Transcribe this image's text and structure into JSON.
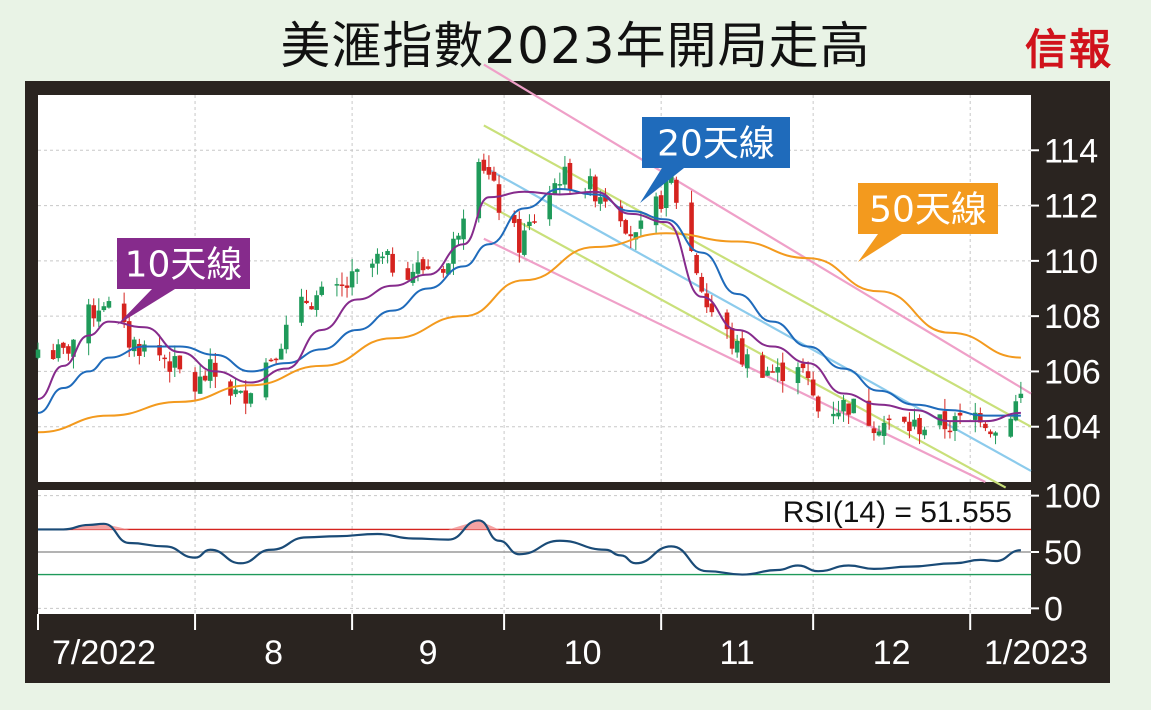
{
  "title": "美滙指數2023年開局走高",
  "brand": "信報",
  "colors": {
    "background": "#e9f3e6",
    "panel": "#2a2420",
    "plot": "#ffffff",
    "up": "#1f9a5a",
    "down": "#d5231f",
    "ma10": "#862b8c",
    "ma20": "#1f6bbb",
    "ma50": "#f39a1e",
    "channel_outer": "#efa0c8",
    "channel_inner": "#c9e07a",
    "channel_mid": "#8ccbec",
    "rsi_line": "#1a4b77",
    "rsi_overbought": "#d5231f",
    "rsi_oversold": "#1f9a5a"
  },
  "chart_data": [
    {
      "type": "candlestick",
      "title": "美滙指數2023年開局走高",
      "x_range": [
        "2022-07-01",
        "2023-01-13"
      ],
      "x_tick_labels": [
        "7/2022",
        "8",
        "9",
        "10",
        "11",
        "12",
        "1/2023"
      ],
      "y_ticks": [
        104,
        106,
        108,
        110,
        112,
        114
      ],
      "ylim": [
        102.0,
        116.0
      ],
      "grid": true,
      "callouts": [
        {
          "label": "10天線",
          "color": "#862b8c"
        },
        {
          "label": "20天線",
          "color": "#1f6bbb"
        },
        {
          "label": "50天線",
          "color": "#f39a1e"
        }
      ],
      "ma10": [
        [
          "2022-07-01",
          105.0
        ],
        [
          "2022-07-06",
          106.2
        ],
        [
          "2022-07-11",
          107.3
        ],
        [
          "2022-07-15",
          107.8
        ],
        [
          "2022-07-22",
          107.6
        ],
        [
          "2022-07-29",
          106.7
        ],
        [
          "2022-08-05",
          106.0
        ],
        [
          "2022-08-12",
          105.6
        ],
        [
          "2022-08-19",
          106.1
        ],
        [
          "2022-08-26",
          107.5
        ],
        [
          "2022-09-02",
          108.6
        ],
        [
          "2022-09-09",
          109.1
        ],
        [
          "2022-09-16",
          109.5
        ],
        [
          "2022-09-23",
          110.6
        ],
        [
          "2022-09-28",
          112.3
        ],
        [
          "2022-10-05",
          112.5
        ],
        [
          "2022-10-12",
          112.4
        ],
        [
          "2022-10-19",
          112.5
        ],
        [
          "2022-10-26",
          111.7
        ],
        [
          "2022-11-02",
          111.4
        ],
        [
          "2022-11-09",
          108.7
        ],
        [
          "2022-11-16",
          107.5
        ],
        [
          "2022-11-23",
          106.9
        ],
        [
          "2022-11-30",
          106.3
        ],
        [
          "2022-12-07",
          105.2
        ],
        [
          "2022-12-14",
          104.8
        ],
        [
          "2022-12-21",
          104.6
        ],
        [
          "2022-12-28",
          104.2
        ],
        [
          "2023-01-04",
          104.2
        ],
        [
          "2023-01-11",
          104.5
        ]
      ],
      "ma20": [
        [
          "2022-07-01",
          104.5
        ],
        [
          "2022-07-06",
          105.4
        ],
        [
          "2022-07-11",
          106.0
        ],
        [
          "2022-07-15",
          106.5
        ],
        [
          "2022-07-22",
          106.9
        ],
        [
          "2022-07-29",
          106.9
        ],
        [
          "2022-08-05",
          106.6
        ],
        [
          "2022-08-12",
          106.0
        ],
        [
          "2022-08-19",
          106.3
        ],
        [
          "2022-08-26",
          106.8
        ],
        [
          "2022-09-02",
          107.5
        ],
        [
          "2022-09-09",
          108.2
        ],
        [
          "2022-09-16",
          109.0
        ],
        [
          "2022-09-23",
          109.8
        ],
        [
          "2022-09-28",
          110.6
        ],
        [
          "2022-10-05",
          111.9
        ],
        [
          "2022-10-12",
          112.6
        ],
        [
          "2022-10-19",
          112.4
        ],
        [
          "2022-10-26",
          111.8
        ],
        [
          "2022-11-02",
          111.5
        ],
        [
          "2022-11-09",
          110.3
        ],
        [
          "2022-11-16",
          108.8
        ],
        [
          "2022-11-23",
          107.8
        ],
        [
          "2022-11-30",
          106.9
        ],
        [
          "2022-12-07",
          106.1
        ],
        [
          "2022-12-14",
          105.3
        ],
        [
          "2022-12-21",
          104.8
        ],
        [
          "2022-12-28",
          104.6
        ],
        [
          "2023-01-04",
          104.4
        ],
        [
          "2023-01-11",
          104.4
        ]
      ],
      "ma50": [
        [
          "2022-07-01",
          103.8
        ],
        [
          "2022-07-15",
          104.4
        ],
        [
          "2022-07-29",
          104.9
        ],
        [
          "2022-08-12",
          105.5
        ],
        [
          "2022-08-26",
          106.2
        ],
        [
          "2022-09-09",
          107.2
        ],
        [
          "2022-09-23",
          108.0
        ],
        [
          "2022-10-05",
          109.3
        ],
        [
          "2022-10-19",
          110.5
        ],
        [
          "2022-11-02",
          111.0
        ],
        [
          "2022-11-16",
          110.7
        ],
        [
          "2022-11-30",
          110.1
        ],
        [
          "2022-12-14",
          108.9
        ],
        [
          "2022-12-28",
          107.4
        ],
        [
          "2023-01-11",
          106.5
        ]
      ],
      "channel_lines": [
        {
          "name": "outer_upper",
          "from": [
            "2022-09-27",
            117.1
          ],
          "to": [
            "2023-01-13",
            105.2
          ]
        },
        {
          "name": "inner_upper",
          "from": [
            "2022-09-27",
            114.9
          ],
          "to": [
            "2023-01-13",
            104.0
          ]
        },
        {
          "name": "mid",
          "from": [
            "2022-09-27",
            113.4
          ],
          "to": [
            "2023-01-13",
            102.4
          ]
        },
        {
          "name": "inner_lower",
          "from": [
            "2022-09-27",
            112.1
          ],
          "to": [
            "2023-01-08",
            101.8
          ]
        },
        {
          "name": "outer_lower",
          "from": [
            "2022-09-27",
            110.8
          ],
          "to": [
            "2023-01-04",
            102.0
          ]
        }
      ],
      "anchors": [
        [
          "2022-07-01",
          106.8
        ],
        [
          "2022-07-06",
          106.6
        ],
        [
          "2022-07-11",
          108.0
        ],
        [
          "2022-07-14",
          108.6
        ],
        [
          "2022-07-19",
          107.1
        ],
        [
          "2022-07-26",
          106.5
        ],
        [
          "2022-08-01",
          105.4
        ],
        [
          "2022-08-04",
          106.0
        ],
        [
          "2022-08-10",
          105.0
        ],
        [
          "2022-08-16",
          106.6
        ],
        [
          "2022-08-23",
          108.6
        ],
        [
          "2022-08-29",
          108.8
        ],
        [
          "2022-09-06",
          110.0
        ],
        [
          "2022-09-13",
          109.7
        ],
        [
          "2022-09-20",
          109.9
        ],
        [
          "2022-09-26",
          114.0
        ],
        [
          "2022-09-30",
          112.0
        ],
        [
          "2022-10-04",
          110.6
        ],
        [
          "2022-10-12",
          113.1
        ],
        [
          "2022-10-21",
          112.4
        ],
        [
          "2022-10-24",
          111.8
        ],
        [
          "2022-10-27",
          110.7
        ],
        [
          "2022-11-03",
          112.9
        ],
        [
          "2022-11-10",
          108.4
        ],
        [
          "2022-11-17",
          106.5
        ],
        [
          "2022-11-24",
          105.9
        ],
        [
          "2022-11-28",
          106.4
        ],
        [
          "2022-12-02",
          104.6
        ],
        [
          "2022-12-08",
          104.8
        ],
        [
          "2022-12-13",
          104.2
        ],
        [
          "2022-12-20",
          104.0
        ],
        [
          "2022-12-29",
          104.1
        ],
        [
          "2023-01-03",
          104.5
        ],
        [
          "2023-01-06",
          103.8
        ],
        [
          "2023-01-11",
          105.1
        ]
      ]
    },
    {
      "type": "line",
      "title": "RSI(14) = 51.555",
      "ylim": [
        -5,
        105
      ],
      "y_ticks": [
        0,
        50,
        100
      ],
      "reference_lines": [
        70,
        50,
        30
      ],
      "series": [
        {
          "name": "RSI(14)",
          "points": [
            [
              "2022-07-01",
              70
            ],
            [
              "2022-07-06",
              70
            ],
            [
              "2022-07-11",
              74
            ],
            [
              "2022-07-14",
              75
            ],
            [
              "2022-07-19",
              58
            ],
            [
              "2022-07-26",
              55
            ],
            [
              "2022-08-01",
              45
            ],
            [
              "2022-08-04",
              52
            ],
            [
              "2022-08-10",
              40
            ],
            [
              "2022-08-16",
              52
            ],
            [
              "2022-08-23",
              63
            ],
            [
              "2022-08-29",
              64
            ],
            [
              "2022-09-06",
              66
            ],
            [
              "2022-09-13",
              62
            ],
            [
              "2022-09-20",
              61
            ],
            [
              "2022-09-26",
              78
            ],
            [
              "2022-09-30",
              60
            ],
            [
              "2022-10-04",
              48
            ],
            [
              "2022-10-12",
              60
            ],
            [
              "2022-10-21",
              52
            ],
            [
              "2022-10-24",
              47
            ],
            [
              "2022-10-27",
              40
            ],
            [
              "2022-11-03",
              55
            ],
            [
              "2022-11-10",
              33
            ],
            [
              "2022-11-17",
              30
            ],
            [
              "2022-11-24",
              34
            ],
            [
              "2022-11-28",
              38
            ],
            [
              "2022-12-02",
              33
            ],
            [
              "2022-12-08",
              38
            ],
            [
              "2022-12-13",
              35
            ],
            [
              "2022-12-20",
              37
            ],
            [
              "2022-12-29",
              40
            ],
            [
              "2023-01-03",
              43
            ],
            [
              "2023-01-06",
              42
            ],
            [
              "2023-01-11",
              51.555
            ]
          ]
        }
      ]
    }
  ]
}
